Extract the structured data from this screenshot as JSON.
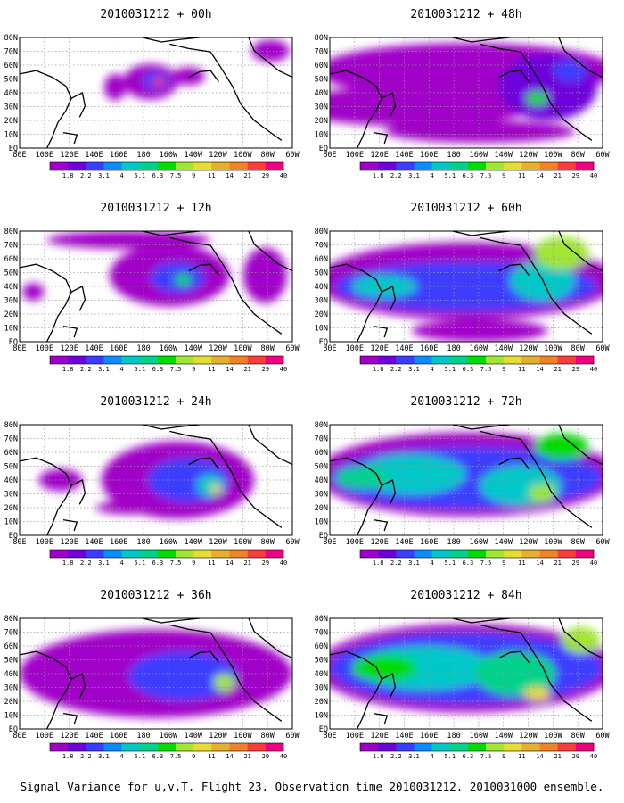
{
  "caption": "Signal Variance for u,v,T. Flight 23. Observation time 2010031212. 2010031000 ensemble.",
  "lat_labels": [
    "80N",
    "70N",
    "60N",
    "50N",
    "40N",
    "30N",
    "20N",
    "10N",
    "EQ"
  ],
  "lon_labels": [
    "80E",
    "100E",
    "120E",
    "140E",
    "160E",
    "180",
    "160W",
    "140W",
    "120W",
    "100W",
    "80W",
    "60W"
  ],
  "colorbar": {
    "colors": [
      "#a000c8",
      "#6e00dc",
      "#3c3cff",
      "#0a8cff",
      "#00c8c8",
      "#00d28c",
      "#00dc00",
      "#a0e632",
      "#e6dc32",
      "#e6af2d",
      "#f08228",
      "#fa3c3c",
      "#f00082"
    ],
    "labels": [
      "1.8",
      "2.2",
      "3.1",
      "4",
      "5.1",
      "6.3",
      "7.5",
      "9",
      "11",
      "14",
      "21",
      "29",
      "40"
    ]
  },
  "panels": [
    {
      "title": "2010031212 + 00h"
    },
    {
      "title": "2010031212 + 48h"
    },
    {
      "title": "2010031212 + 12h"
    },
    {
      "title": "2010031212 + 60h"
    },
    {
      "title": "2010031212 + 24h"
    },
    {
      "title": "2010031212 + 72h"
    },
    {
      "title": "2010031212 + 36h"
    },
    {
      "title": "2010031212 + 84h"
    }
  ]
}
